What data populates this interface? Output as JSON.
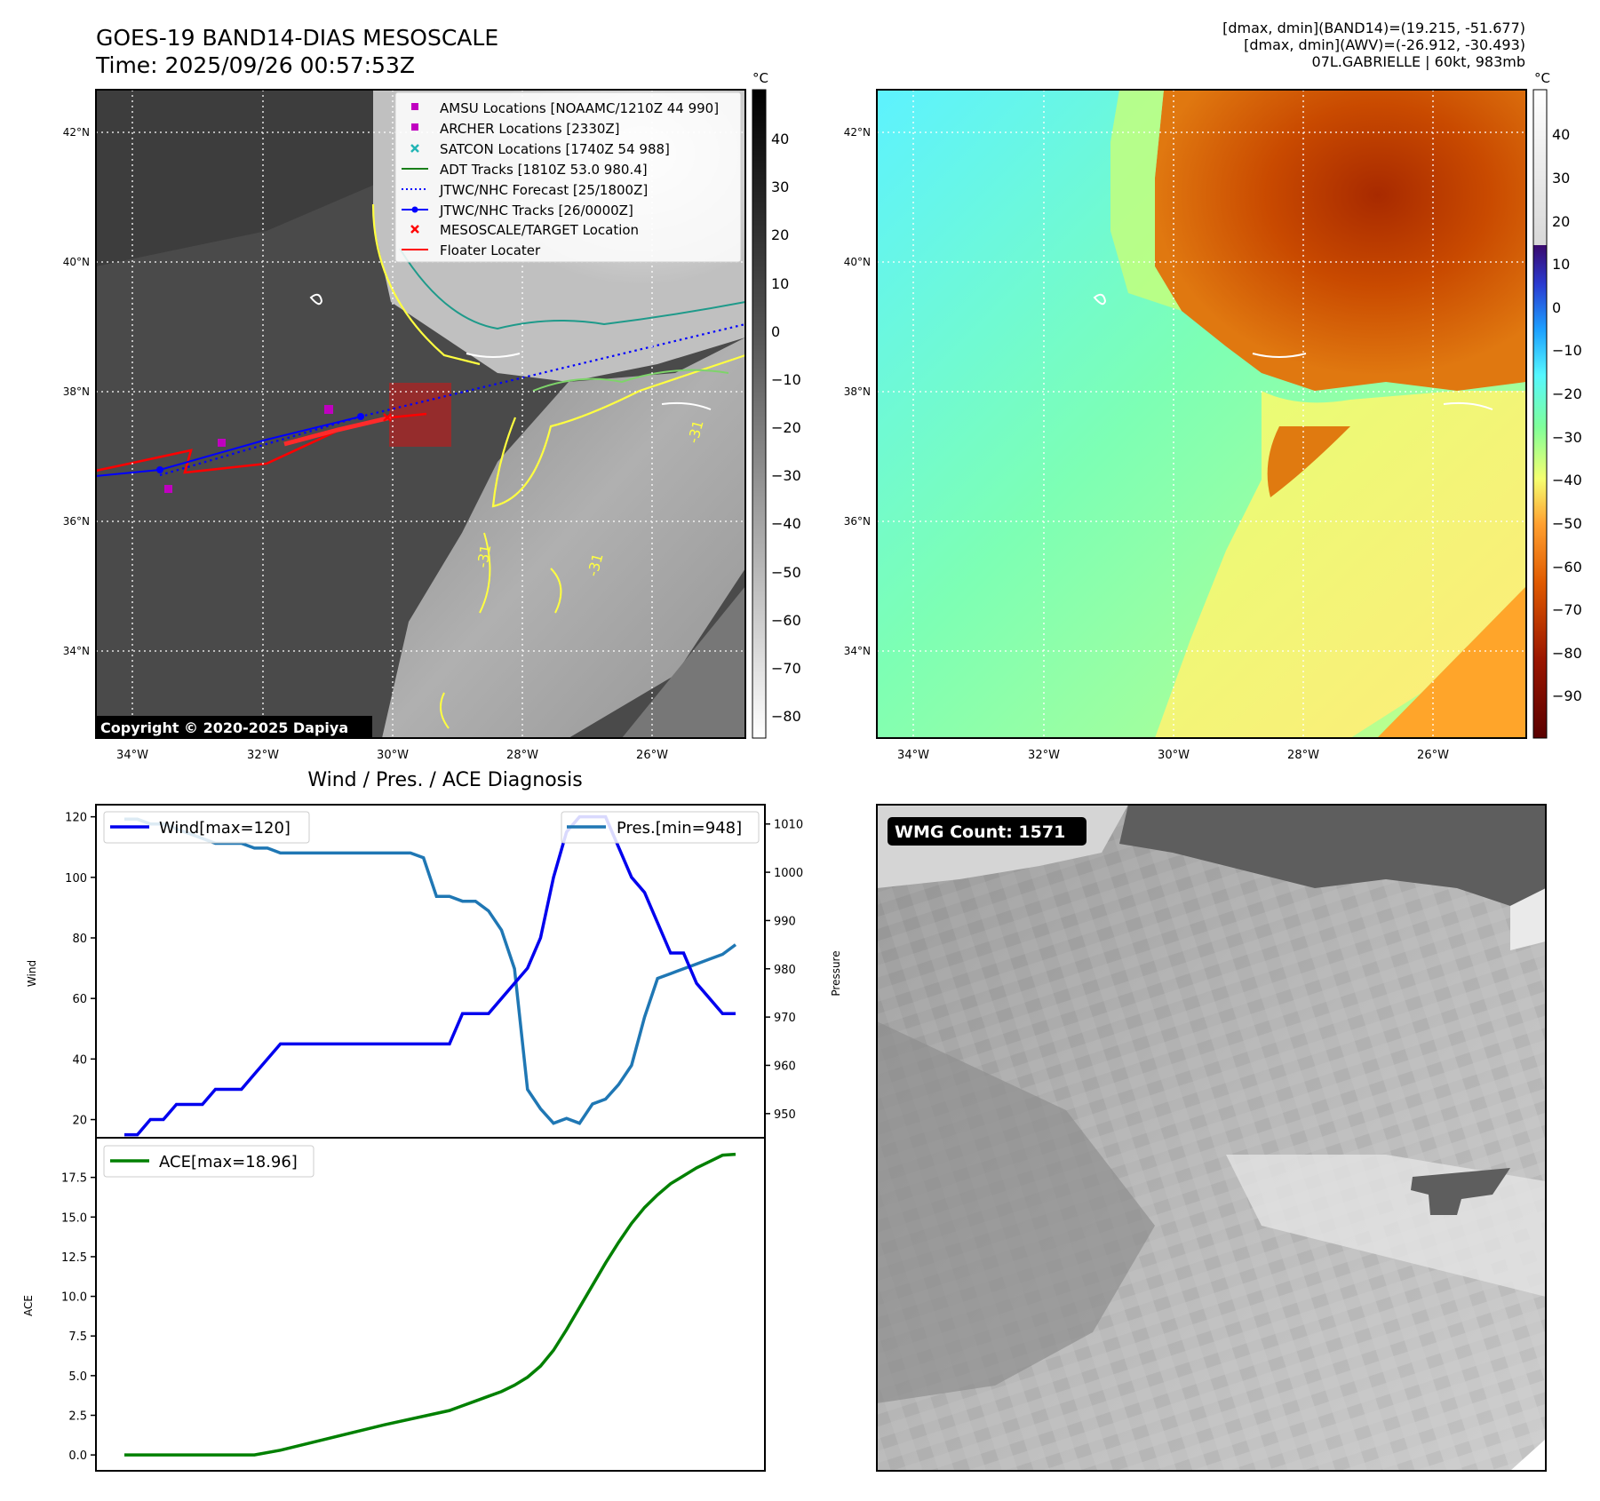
{
  "header": {
    "title_line1": "GOES-19 BAND14-DIAS MESOSCALE",
    "title_line2": "Time: 2025/09/26 00:57:53Z",
    "info_line1": "[dmax, dmin](BAND14)=(19.215, -51.677)",
    "info_line2": "[dmax, dmin](AWV)=(-26.912, -30.493)",
    "info_line3": "07L.GABRIELLE | 60kt, 983mb"
  },
  "map": {
    "lat_labels": [
      "42°N",
      "40°N",
      "38°N",
      "36°N",
      "34°N"
    ],
    "lon_labels": [
      "34°W",
      "32°W",
      "30°W",
      "28°W",
      "26°W"
    ],
    "lat_values": [
      42,
      40,
      38,
      36,
      34
    ],
    "lon_values": [
      -34,
      -32,
      -30,
      -28,
      -26
    ],
    "contour_label": "-31",
    "copyright": "Copyright © 2020-2025 Dapiya",
    "legend": [
      {
        "name": "AMSU Locations [NOAAMC/1210Z 44 990]",
        "marker": "square",
        "color": "#c000c0"
      },
      {
        "name": "ARCHER Locations [2330Z]",
        "marker": "square",
        "color": "#c000c0"
      },
      {
        "name": "SATCON Locations [1740Z 54 988]",
        "marker": "x",
        "color": "#22b5b5"
      },
      {
        "name": "ADT Tracks [1810Z 53.0 980.4]",
        "marker": "line",
        "color": "#1a7f1a"
      },
      {
        "name": "JTWC/NHC Forecast [25/1800Z]",
        "marker": "dotted",
        "color": "#0000ff"
      },
      {
        "name": "JTWC/NHC Tracks [26/0000Z]",
        "marker": "line-dot",
        "color": "#0000ff"
      },
      {
        "name": "MESOSCALE/TARGET Location",
        "marker": "x",
        "color": "#ff0000"
      },
      {
        "name": "Floater Locater",
        "marker": "line",
        "color": "#ff0000"
      }
    ]
  },
  "colorbar_gray": {
    "unit": "°C",
    "ticks": [
      "40",
      "30",
      "20",
      "10",
      "0",
      "−10",
      "−20",
      "−30",
      "−40",
      "−50",
      "−60",
      "−70",
      "−80"
    ]
  },
  "colorbar_color": {
    "unit": "°C",
    "ticks": [
      "40",
      "30",
      "20",
      "10",
      "0",
      "−10",
      "−20",
      "−30",
      "−40",
      "−50",
      "−60",
      "−70",
      "−80",
      "−90"
    ]
  },
  "wmg": {
    "label": "WMG Count: 1571"
  },
  "chart_data": [
    {
      "type": "line",
      "title": "Wind / Pres. / ACE Diagnosis",
      "ylabel": "Wind",
      "y2label": "Pressure",
      "ylim": [
        14,
        124
      ],
      "y2lim": [
        945,
        1014
      ],
      "yticks": [
        20,
        40,
        60,
        80,
        100,
        120
      ],
      "y2ticks": [
        950,
        960,
        970,
        980,
        990,
        1000,
        1010
      ],
      "series": [
        {
          "name": "Wind[max=120]",
          "color": "#0000ee",
          "axis": "left",
          "x": [
            0,
            1,
            2,
            3,
            4,
            5,
            6,
            7,
            8,
            9,
            10,
            11,
            12,
            13,
            14,
            15,
            16,
            17,
            18,
            19,
            20,
            21,
            22,
            23,
            24,
            25,
            26,
            27,
            28,
            29,
            30,
            31,
            32,
            33,
            34,
            35,
            36,
            37,
            38,
            39,
            40,
            41,
            42,
            43,
            44,
            45,
            46,
            47
          ],
          "values": [
            15,
            15,
            20,
            20,
            25,
            25,
            25,
            30,
            30,
            30,
            35,
            40,
            45,
            45,
            45,
            45,
            45,
            45,
            45,
            45,
            45,
            45,
            45,
            45,
            45,
            45,
            55,
            55,
            55,
            60,
            65,
            70,
            80,
            100,
            115,
            120,
            120,
            120,
            110,
            100,
            95,
            85,
            75,
            75,
            65,
            60,
            55,
            55
          ]
        },
        {
          "name": "Pres.[min=948]",
          "color": "#1f77b4",
          "axis": "right",
          "x": [
            0,
            1,
            2,
            3,
            4,
            5,
            6,
            7,
            8,
            9,
            10,
            11,
            12,
            13,
            14,
            15,
            16,
            17,
            18,
            19,
            20,
            21,
            22,
            23,
            24,
            25,
            26,
            27,
            28,
            29,
            30,
            31,
            32,
            33,
            34,
            35,
            36,
            37,
            38,
            39,
            40,
            41,
            42,
            43,
            44,
            45,
            46,
            47
          ],
          "values": [
            1011,
            1011,
            1010,
            1010,
            1009,
            1008,
            1007,
            1006,
            1006,
            1006,
            1005,
            1005,
            1004,
            1004,
            1004,
            1004,
            1004,
            1004,
            1004,
            1004,
            1004,
            1004,
            1004,
            1003,
            995,
            995,
            994,
            994,
            992,
            988,
            980,
            955,
            951,
            948,
            949,
            948,
            952,
            953,
            956,
            960,
            970,
            978,
            979,
            980,
            981,
            982,
            983,
            985
          ]
        }
      ]
    },
    {
      "type": "line",
      "ylabel": "ACE",
      "ylim": [
        -1.0,
        20.0
      ],
      "yticks": [
        0.0,
        2.5,
        5.0,
        7.5,
        10.0,
        12.5,
        15.0,
        17.5
      ],
      "ytick_labels": [
        "0.0",
        "2.5",
        "5.0",
        "7.5",
        "10.0",
        "12.5",
        "15.0",
        "17.5"
      ],
      "series": [
        {
          "name": "ACE[max=18.96]",
          "color": "#008000",
          "x": [
            0,
            10,
            12,
            15,
            20,
            25,
            26,
            27,
            28,
            29,
            30,
            31,
            32,
            33,
            34,
            35,
            36,
            37,
            38,
            39,
            40,
            41,
            42,
            43,
            44,
            45,
            46,
            47
          ],
          "values": [
            0,
            0,
            0.3,
            0.9,
            1.9,
            2.8,
            3.1,
            3.4,
            3.7,
            4.0,
            4.4,
            4.9,
            5.6,
            6.6,
            7.9,
            9.3,
            10.7,
            12.1,
            13.4,
            14.6,
            15.6,
            16.4,
            17.1,
            17.6,
            18.1,
            18.5,
            18.9,
            18.96
          ]
        }
      ]
    }
  ]
}
